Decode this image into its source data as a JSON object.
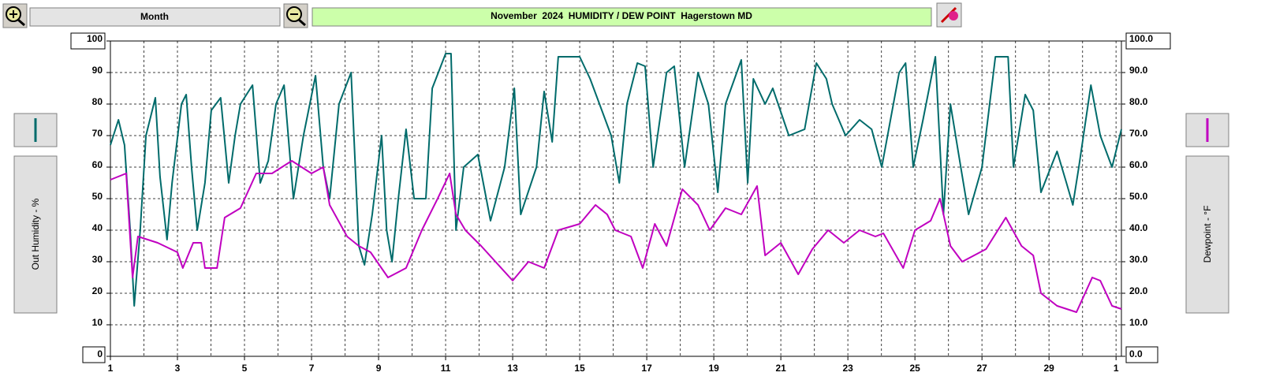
{
  "toolbar": {
    "period": "Month"
  },
  "chart_data": {
    "type": "line",
    "title": "November  2024  HUMIDITY / DEW POINT  Hagerstown MD",
    "ylabel": "Out Humidity - %",
    "y2label": "Dewpoint - °F",
    "xlim": [
      0,
      30.16
    ],
    "xticks": [
      {
        "value": 0,
        "label": "1"
      },
      {
        "value": 2,
        "label": "3"
      },
      {
        "value": 4,
        "label": "5"
      },
      {
        "value": 6,
        "label": "7"
      },
      {
        "value": 8,
        "label": "9"
      },
      {
        "value": 10,
        "label": "11"
      },
      {
        "value": 12,
        "label": "13"
      },
      {
        "value": 14,
        "label": "15"
      },
      {
        "value": 16,
        "label": "17"
      },
      {
        "value": 18,
        "label": "19"
      },
      {
        "value": 20,
        "label": "21"
      },
      {
        "value": 22,
        "label": "23"
      },
      {
        "value": 24,
        "label": "25"
      },
      {
        "value": 26,
        "label": "27"
      },
      {
        "value": 28,
        "label": "29"
      },
      {
        "value": 30,
        "label": "1"
      }
    ],
    "x_minor_ticks": [
      1,
      3,
      5,
      7,
      9,
      11,
      13,
      15,
      17,
      19,
      21,
      23,
      25,
      27,
      29
    ],
    "ylim": [
      0,
      100
    ],
    "yticks": [
      0,
      10,
      20,
      30,
      40,
      50,
      60,
      70,
      80,
      90,
      100
    ],
    "y2lim": [
      0,
      100
    ],
    "y2ticks": [
      {
        "value": 0,
        "label": "0.0"
      },
      {
        "value": 10,
        "label": "10.0"
      },
      {
        "value": 20,
        "label": "20.0"
      },
      {
        "value": 30,
        "label": "30.0"
      },
      {
        "value": 40,
        "label": "40.0"
      },
      {
        "value": 50,
        "label": "50.0"
      },
      {
        "value": 60,
        "label": "60.0"
      },
      {
        "value": 70,
        "label": "70.0"
      },
      {
        "value": 80,
        "label": "80.0"
      },
      {
        "value": 90,
        "label": "90.0"
      },
      {
        "value": 100,
        "label": "100.0"
      }
    ],
    "grid": true,
    "series": [
      {
        "color": "#006b6b",
        "axis": "y",
        "x": [
          0,
          0.24,
          0.42,
          0.59,
          0.71,
          0.89,
          1.06,
          1.34,
          1.48,
          1.69,
          1.84,
          2.12,
          2.26,
          2.42,
          2.59,
          2.82,
          3.01,
          3.29,
          3.53,
          3.72,
          3.88,
          4.24,
          4.47,
          4.71,
          4.94,
          5.18,
          5.46,
          5.76,
          6.12,
          6.35,
          6.54,
          6.82,
          7.18,
          7.41,
          7.58,
          7.81,
          8.09,
          8.24,
          8.4,
          8.59,
          8.82,
          9.06,
          9.41,
          9.6,
          10.0,
          10.16,
          10.31,
          10.54,
          10.96,
          11.34,
          11.76,
          12.05,
          12.24,
          12.71,
          12.94,
          13.18,
          13.36,
          14.0,
          14.31,
          14.59,
          14.94,
          15.18,
          15.41,
          15.72,
          15.95,
          16.19,
          16.59,
          16.82,
          17.13,
          17.53,
          17.84,
          18.12,
          18.35,
          18.82,
          19.01,
          19.18,
          19.53,
          19.76,
          20.24,
          20.71,
          21.06,
          21.36,
          21.53,
          21.93,
          22.35,
          22.71,
          23.01,
          23.53,
          23.72,
          23.95,
          24.24,
          24.61,
          24.85,
          25.06,
          25.29,
          25.6,
          26.0,
          26.4,
          26.78,
          26.94,
          27.29,
          27.53,
          27.76,
          28.24,
          28.52,
          28.71,
          28.89,
          29.25,
          29.53,
          29.88,
          30.16
        ],
        "values": [
          67,
          75,
          67,
          40,
          16,
          40,
          70,
          82,
          57,
          37,
          55,
          80,
          83,
          60,
          40,
          55,
          78,
          82,
          55,
          70,
          80,
          86,
          55,
          62,
          80,
          86,
          50,
          70,
          89,
          60,
          50,
          80,
          90,
          35,
          29,
          45,
          70,
          40,
          30,
          50,
          72,
          50,
          50,
          85,
          96,
          96,
          40,
          60,
          64,
          43,
          60,
          85,
          45,
          60,
          84,
          68,
          95,
          95,
          88,
          80,
          70,
          55,
          80,
          93,
          92,
          60,
          90,
          92,
          60,
          90,
          80,
          52,
          80,
          94,
          55,
          88,
          80,
          85,
          70,
          72,
          93,
          88,
          80,
          70,
          75,
          72,
          60,
          90,
          93,
          60,
          75,
          95,
          45,
          80,
          65,
          45,
          60,
          95,
          95,
          60,
          83,
          78,
          52,
          65,
          55,
          48,
          60,
          86,
          70,
          60,
          72
        ]
      },
      {
        "color": "#c000c0",
        "axis": "y2",
        "x": [
          0,
          0.47,
          0.66,
          0.82,
          1.41,
          2.0,
          2.16,
          2.47,
          2.71,
          2.82,
          3.18,
          3.41,
          3.88,
          4.35,
          4.82,
          5.41,
          6.0,
          6.35,
          6.54,
          7.06,
          7.41,
          7.76,
          8.28,
          8.82,
          9.29,
          9.76,
          10.12,
          10.31,
          10.59,
          11.06,
          12.0,
          12.47,
          12.94,
          13.36,
          14.0,
          14.47,
          14.82,
          15.06,
          15.53,
          15.88,
          16.24,
          16.59,
          17.06,
          17.53,
          17.88,
          18.35,
          18.82,
          19.29,
          19.53,
          20.0,
          20.52,
          20.94,
          21.41,
          21.88,
          22.35,
          22.82,
          23.06,
          23.65,
          24.0,
          24.47,
          24.75,
          25.06,
          25.41,
          26.12,
          26.71,
          27.18,
          27.53,
          27.76,
          28.24,
          28.82,
          29.29,
          29.53,
          29.88,
          30.16
        ],
        "values": [
          56,
          58,
          25,
          38,
          36,
          33,
          28,
          36,
          36,
          28,
          28,
          44,
          47,
          58,
          58,
          62,
          58,
          60,
          48,
          38,
          35,
          33,
          25,
          28,
          40,
          50,
          58,
          45,
          40,
          35,
          24,
          30,
          28,
          40,
          42,
          48,
          45,
          40,
          38,
          28,
          42,
          35,
          53,
          48,
          40,
          47,
          45,
          54,
          32,
          36,
          26,
          34,
          40,
          36,
          40,
          38,
          39,
          28,
          40,
          43,
          50,
          35,
          30,
          34,
          44,
          35,
          32,
          20,
          16,
          14,
          25,
          24,
          16,
          15
        ]
      }
    ]
  }
}
